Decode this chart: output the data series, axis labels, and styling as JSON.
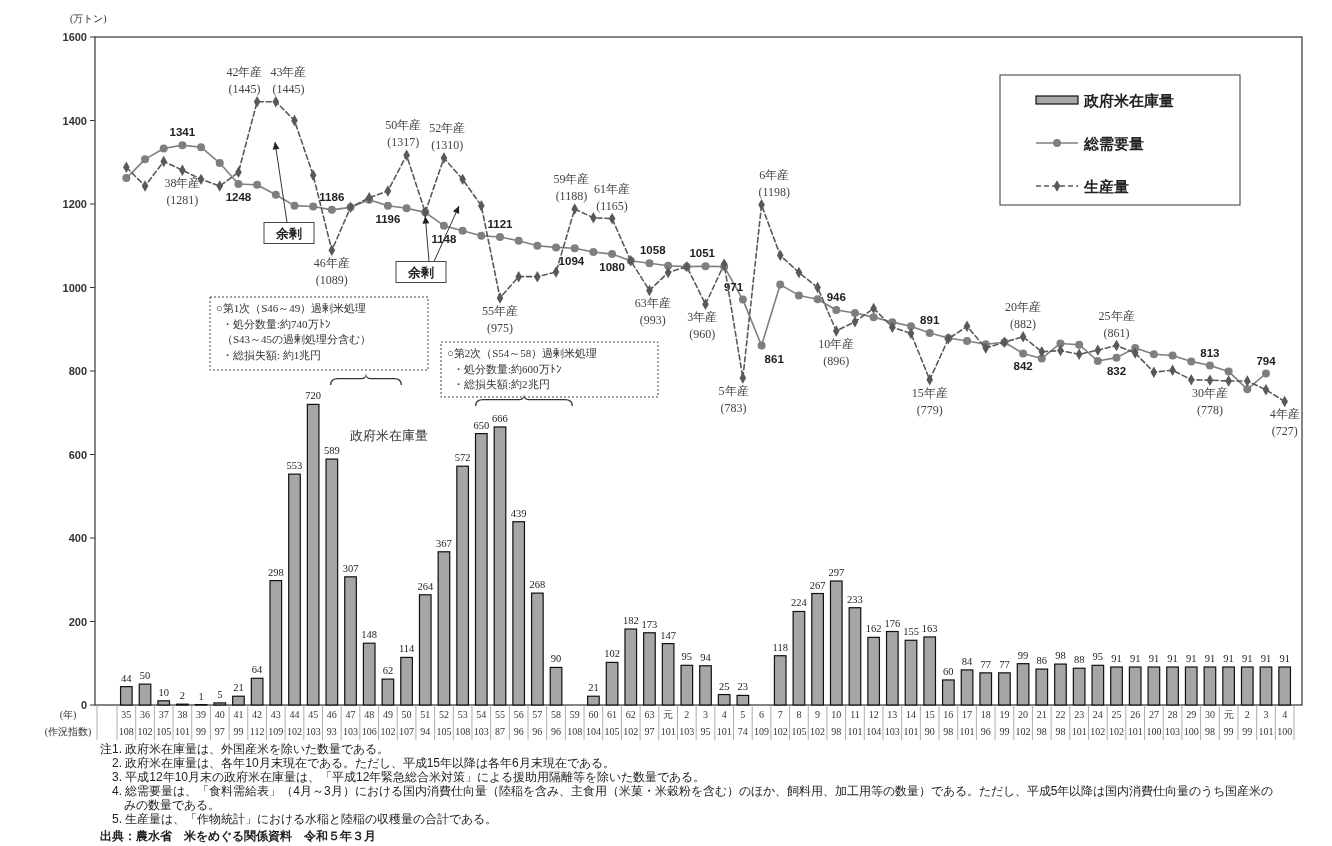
{
  "chart_data": {
    "type": "bar",
    "ylabel": "(万トン)",
    "xlabel": "(年)\n(作況指数)",
    "categories": [
      "35\n108",
      "36\n102",
      "37\n105",
      "38\n101",
      "39\n99",
      "40\n97",
      "41\n99",
      "42\n112",
      "43\n109",
      "44\n102",
      "45\n103",
      "46\n93",
      "47\n103",
      "48\n106",
      "49\n102",
      "50\n107",
      "51\n94",
      "52\n105",
      "53\n108",
      "54\n103",
      "55\n87",
      "56\n96",
      "57\n96",
      "58\n96",
      "59\n108",
      "60\n104",
      "61\n105",
      "62\n102",
      "63\n97",
      "元\n101",
      "2\n103",
      "3\n95",
      "4\n101",
      "5\n74",
      "6\n109",
      "7\n102",
      "8\n105",
      "9\n102",
      "10\n98",
      "11\n101",
      "12\n104",
      "13\n103",
      "14\n101",
      "15\n90",
      "16\n98",
      "17\n101",
      "18\n96",
      "19\n99",
      "20\n102",
      "21\n98",
      "22\n98",
      "23\n101",
      "24\n102",
      "25\n102",
      "26\n101",
      "27\n100",
      "28\n103",
      "29\n100",
      "30\n98",
      "元\n99",
      "2\n99",
      "3\n101",
      "4\n100"
    ],
    "ylim": [
      0,
      1600
    ],
    "yticks": [
      0,
      200,
      400,
      600,
      800,
      1000,
      1200,
      1400,
      1600
    ],
    "legend": "top right",
    "data_labels": true,
    "series": [
      {
        "name": "政府米在庫量",
        "color": "#a6a6a6",
        "values": [
          44,
          50,
          10,
          2,
          1,
          5,
          21,
          64,
          298,
          553,
          720,
          589,
          307,
          148,
          62,
          114,
          264,
          367,
          572,
          650,
          666,
          439,
          268,
          90,
          null,
          21,
          102,
          182,
          173,
          147,
          95,
          94,
          25,
          23,
          null,
          118,
          224,
          267,
          297,
          233,
          162,
          176,
          155,
          163,
          60,
          84,
          77,
          77,
          99,
          86,
          98,
          88,
          95,
          91,
          91,
          91,
          91,
          91,
          91,
          91,
          91,
          91,
          91
        ]
      },
      {
        "name": "総需要量",
        "type": "line",
        "color": "#7f7f7f",
        "marker": "circle",
        "line_style": "solid",
        "values": [
          1262,
          1307,
          1333,
          1341,
          1336,
          1298,
          1248,
          1246,
          1222,
          1196,
          1194,
          1186,
          1192,
          1210,
          1196,
          1190,
          1180,
          1148,
          1136,
          1124,
          1121,
          1112,
          1100,
          1096,
          1094,
          1085,
          1080,
          1064,
          1058,
          1052,
          1050,
          1051,
          1050,
          971,
          861,
          1007,
          981,
          972,
          946,
          939,
          929,
          917,
          907,
          891,
          879,
          872,
          864,
          869,
          842,
          830,
          866,
          863,
          824,
          832,
          855,
          840,
          837,
          823,
          813,
          799,
          756,
          794,
          null
        ],
        "value_labels": [
          null,
          null,
          null,
          "1341",
          null,
          null,
          "1248",
          null,
          null,
          null,
          null,
          "1186",
          null,
          null,
          "1196",
          null,
          null,
          "1148",
          null,
          null,
          "1121",
          null,
          null,
          null,
          "1094",
          null,
          "1080",
          null,
          "1058",
          null,
          null,
          "1051",
          null,
          "971",
          "861",
          null,
          null,
          null,
          "946",
          null,
          null,
          null,
          null,
          "891",
          null,
          null,
          null,
          null,
          "842",
          null,
          null,
          null,
          null,
          "832",
          null,
          null,
          null,
          null,
          "813",
          null,
          null,
          "794",
          null
        ]
      },
      {
        "name": "生産量",
        "type": "line",
        "color": "#595959",
        "marker": "diamond",
        "line_style": "dashed",
        "values": [
          1288,
          1243,
          1302,
          1281,
          1259,
          1243,
          1276,
          1445,
          1445,
          1400,
          1269,
          1089,
          1192,
          1215,
          1231,
          1317,
          1180,
          1310,
          1259,
          1196,
          975,
          1026,
          1026,
          1037,
          1188,
          1167,
          1165,
          1064,
          993,
          1036,
          1050,
          960,
          1056,
          783,
          1198,
          1077,
          1036,
          1000,
          896,
          918,
          950,
          905,
          890,
          779,
          877,
          907,
          855,
          869,
          882,
          846,
          849,
          840,
          850,
          861,
          843,
          797,
          802,
          779,
          778,
          776,
          776,
          755,
          727
        ],
        "value_labels": [
          null,
          null,
          null,
          "38年産\n(1281)",
          null,
          null,
          null,
          "42年産\n(1445)",
          "43年産\n(1445)",
          null,
          null,
          "46年産\n(1089)",
          null,
          null,
          null,
          "50年産\n(1317)",
          null,
          "52年産\n(1310)",
          null,
          null,
          "55年産\n(975)",
          null,
          null,
          null,
          "59年産\n(1188)",
          null,
          "61年産\n(1165)",
          null,
          "63年産\n(993)",
          null,
          null,
          "3年産\n(960)",
          null,
          "5年産\n(783)",
          "6年産\n(1198)",
          null,
          null,
          null,
          "10年産\n(896)",
          null,
          null,
          null,
          null,
          "15年産\n(779)",
          null,
          null,
          null,
          null,
          "20年産\n(882)",
          null,
          null,
          null,
          null,
          "25年産\n(861)",
          null,
          null,
          null,
          null,
          "30年産\n(778)",
          null,
          null,
          null,
          "4年産\n(727)"
        ]
      }
    ],
    "annotations": [
      "余剰",
      {
        "text": "余剰",
        "x": "51\n94",
        "y": 1180
      },
      "○第1次（S46～49）過剰米処理・処分数量:約740万ﾄﾝ（S43～45の過剰処理分含む）・総損失額: 約1兆円",
      "○第2次（S54～58）過剰米処理・処分数量:約600万ﾄﾝ・総損失額:約2兆円",
      "政府米在庫量",
      "注1. 政府米在庫量は、外国産米を除いた数量である。",
      "2. 政府米在庫量は、各年10月末現在である。ただし、平成15年以降は各年6月末現在である。",
      "3. 平成12年10月末の政府米在庫量は、「平成12年緊急総合米対策」による援助用隔離等を除いた数量である。",
      "4. 総需要量は、「食料需給表」（4月～3月）における国内消費仕向量（陸稲を含み、主食用（米菓・米穀粉を含む）のほか、飼料用、加工用等の数量）である。ただし、平成5年以降は国内消費仕向量のうち国産米のみの数量である。",
      "5. 生産量は、「作物統計」における水稲と陸稲の収穫量の合計である。",
      "出典：農水省　米をめぐる関係資料　令和５年３月"
    ]
  }
}
